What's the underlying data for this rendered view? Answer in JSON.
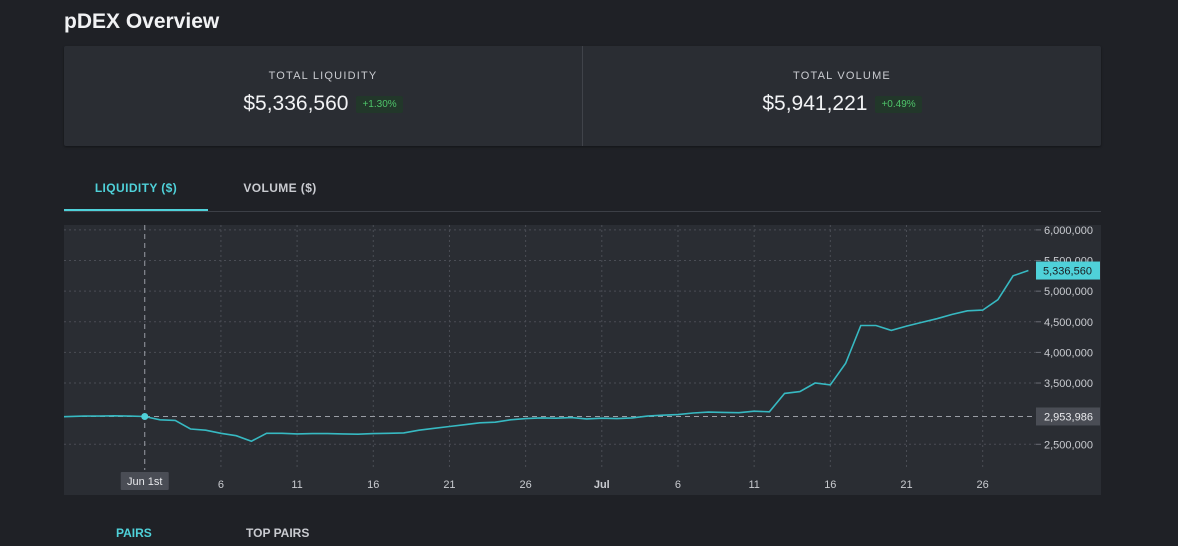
{
  "page": {
    "title": "pDEX Overview"
  },
  "stats": {
    "liquidity": {
      "label": "TOTAL LIQUIDITY",
      "value": "$5,336,560",
      "change": "+1.30%"
    },
    "volume": {
      "label": "TOTAL VOLUME",
      "value": "$5,941,221",
      "change": "+0.49%"
    }
  },
  "tabs": {
    "liquidity": "LIQUIDITY ($)",
    "volume": "VOLUME ($)"
  },
  "bottom_tabs": {
    "first": "PAIRS",
    "second": "TOP PAIRS"
  },
  "colors": {
    "accent": "#4fd1d9",
    "positive": "#4fc46a",
    "panel": "#2a2d33",
    "background": "#1f2126"
  },
  "chart_data": {
    "type": "line",
    "y_ticks": [
      "6,000,000",
      "5,500,000",
      "5,000,000",
      "4,500,000",
      "4,000,000",
      "3,500,000",
      "2,500,000"
    ],
    "y_tick_values": [
      6000000,
      5500000,
      5000000,
      4500000,
      4000000,
      3500000,
      2500000
    ],
    "x_ticks": [
      "6",
      "11",
      "16",
      "21",
      "26",
      "Jul",
      "6",
      "11",
      "16",
      "21",
      "26"
    ],
    "x_tick_days": [
      6,
      11,
      16,
      21,
      26,
      31,
      36,
      41,
      46,
      51,
      56
    ],
    "crosshair": {
      "x_label": "Jun 1st",
      "x_day": 1,
      "y_label": "2,953,986",
      "y_value": 2953986
    },
    "last_value": {
      "label": "5,336,560",
      "value": 5336560
    },
    "x_range_days": [
      -4.3,
      59.5
    ],
    "ylim": [
      2080000,
      6080000
    ],
    "grid": true,
    "series": [
      {
        "values": [
          [
            -4.3,
            2950000
          ],
          [
            -3,
            2960000
          ],
          [
            -2,
            2960000
          ],
          [
            -1,
            2965000
          ],
          [
            0,
            2960000
          ],
          [
            1,
            2953986
          ],
          [
            2,
            2900000
          ],
          [
            3,
            2890000
          ],
          [
            4,
            2750000
          ],
          [
            5,
            2730000
          ],
          [
            6,
            2680000
          ],
          [
            7,
            2640000
          ],
          [
            8,
            2550000
          ],
          [
            9,
            2680000
          ],
          [
            10,
            2680000
          ],
          [
            11,
            2670000
          ],
          [
            12,
            2675000
          ],
          [
            13,
            2675000
          ],
          [
            14,
            2670000
          ],
          [
            15,
            2665000
          ],
          [
            16,
            2675000
          ],
          [
            17,
            2680000
          ],
          [
            18,
            2685000
          ],
          [
            19,
            2730000
          ],
          [
            20,
            2760000
          ],
          [
            21,
            2790000
          ],
          [
            22,
            2820000
          ],
          [
            23,
            2850000
          ],
          [
            24,
            2860000
          ],
          [
            25,
            2900000
          ],
          [
            26,
            2920000
          ],
          [
            27,
            2930000
          ],
          [
            28,
            2925000
          ],
          [
            29,
            2935000
          ],
          [
            30,
            2915000
          ],
          [
            31,
            2925000
          ],
          [
            32,
            2920000
          ],
          [
            33,
            2930000
          ],
          [
            34,
            2960000
          ],
          [
            35,
            2975000
          ],
          [
            36,
            2985000
          ],
          [
            37,
            3010000
          ],
          [
            38,
            3025000
          ],
          [
            39,
            3020000
          ],
          [
            40,
            3015000
          ],
          [
            41,
            3040000
          ],
          [
            42,
            3030000
          ],
          [
            43,
            3330000
          ],
          [
            44,
            3360000
          ],
          [
            45,
            3500000
          ],
          [
            46,
            3470000
          ],
          [
            47,
            3820000
          ],
          [
            48,
            4440000
          ],
          [
            49,
            4440000
          ],
          [
            50,
            4360000
          ],
          [
            51,
            4430000
          ],
          [
            52,
            4490000
          ],
          [
            53,
            4550000
          ],
          [
            54,
            4620000
          ],
          [
            55,
            4680000
          ],
          [
            56,
            4690000
          ],
          [
            57,
            4860000
          ],
          [
            58,
            5250000
          ],
          [
            59,
            5336560
          ]
        ]
      }
    ]
  }
}
